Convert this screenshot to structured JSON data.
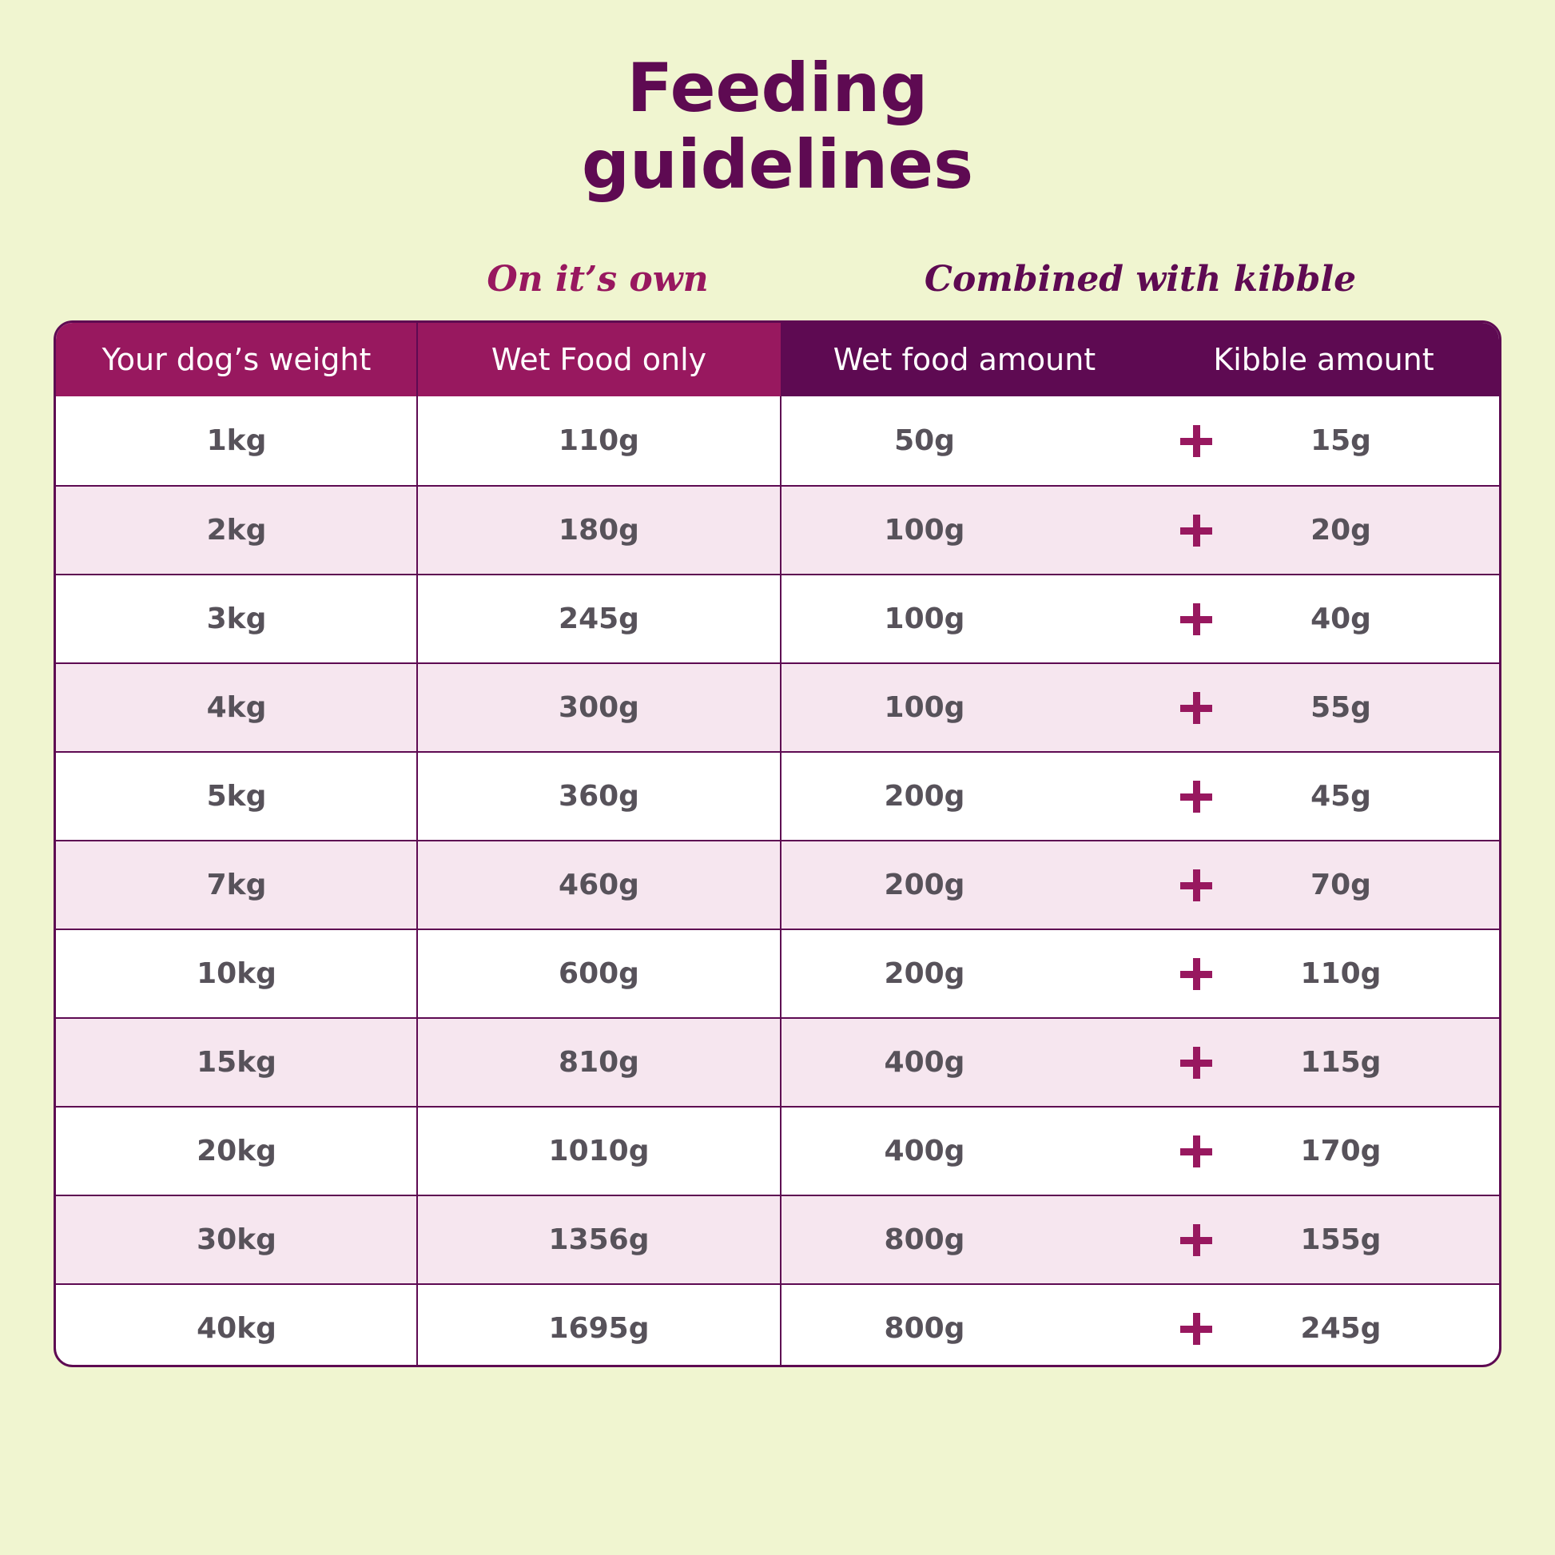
{
  "title": {
    "line1": "Feeding",
    "line2": "guidelines"
  },
  "groups": {
    "own": "On it’s own",
    "combined": "Combined with kibble"
  },
  "headers": {
    "weight": "Your dog’s weight",
    "wet_only": "Wet Food only",
    "wet_amount": "Wet food amount",
    "kibble_amount": "Kibble amount"
  },
  "rows": [
    {
      "weight": "1kg",
      "wet_only": "110g",
      "wet_amount": "50g",
      "kibble": "15g"
    },
    {
      "weight": "2kg",
      "wet_only": "180g",
      "wet_amount": "100g",
      "kibble": "20g"
    },
    {
      "weight": "3kg",
      "wet_only": "245g",
      "wet_amount": "100g",
      "kibble": "40g"
    },
    {
      "weight": "4kg",
      "wet_only": "300g",
      "wet_amount": "100g",
      "kibble": "55g"
    },
    {
      "weight": "5kg",
      "wet_only": "360g",
      "wet_amount": "200g",
      "kibble": "45g"
    },
    {
      "weight": "7kg",
      "wet_only": "460g",
      "wet_amount": "200g",
      "kibble": "70g"
    },
    {
      "weight": "10kg",
      "wet_only": "600g",
      "wet_amount": "200g",
      "kibble": "110g"
    },
    {
      "weight": "15kg",
      "wet_only": "810g",
      "wet_amount": "400g",
      "kibble": "115g"
    },
    {
      "weight": "20kg",
      "wet_only": "1010g",
      "wet_amount": "400g",
      "kibble": "170g"
    },
    {
      "weight": "30kg",
      "wet_only": "1356g",
      "wet_amount": "800g",
      "kibble": "155g"
    },
    {
      "weight": "40kg",
      "wet_only": "1695g",
      "wet_amount": "800g",
      "kibble": "245g"
    }
  ],
  "colors": {
    "background": "#f0f5d0",
    "plum": "#5e0a52",
    "magenta": "#98185f",
    "row_alt": "#f6e6ef",
    "cell_text": "#57525a"
  },
  "icons": {
    "row_separator": "plus-icon"
  }
}
